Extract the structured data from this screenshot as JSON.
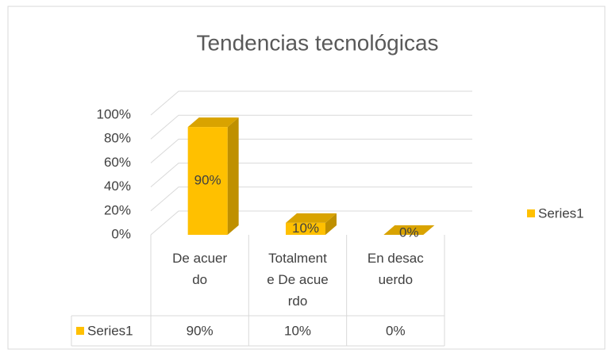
{
  "chart_data": {
    "type": "bar3d",
    "title": "Tendencias tecnológicas",
    "categories": [
      "De acuerdo",
      "Totalmente De acuerdo",
      "En desacuerdo"
    ],
    "series": [
      {
        "name": "Series1",
        "color": "#FFC000",
        "values": [
          90,
          10,
          0
        ],
        "value_labels": [
          "90%",
          "10%",
          "0%"
        ]
      }
    ],
    "ylim": [
      0,
      100
    ],
    "yticks": [
      {
        "value": 0,
        "label": "0%"
      },
      {
        "value": 20,
        "label": "20%"
      },
      {
        "value": 40,
        "label": "40%"
      },
      {
        "value": 60,
        "label": "60%"
      },
      {
        "value": 80,
        "label": "80%"
      },
      {
        "value": 100,
        "label": "100%"
      }
    ],
    "grid": true,
    "legend": "right",
    "data_table": true
  }
}
